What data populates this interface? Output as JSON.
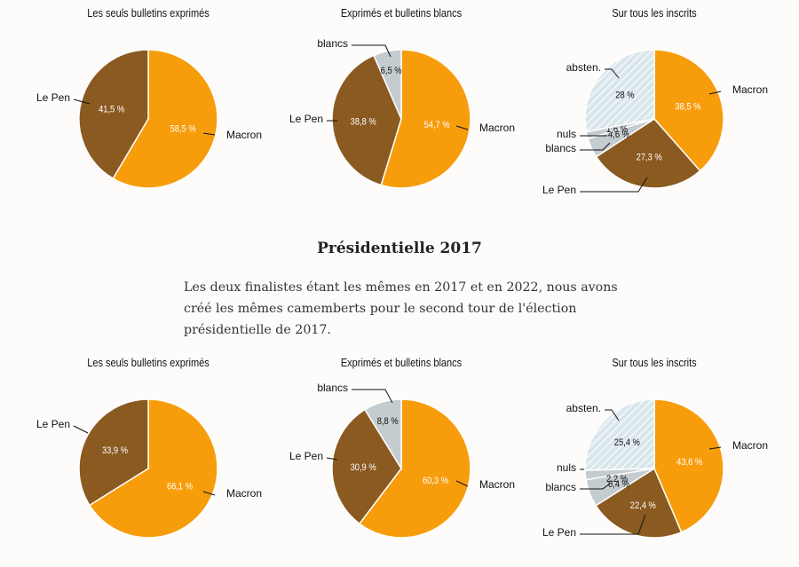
{
  "colors": {
    "macron": "#f79d0c",
    "lepen": "#8a5a21",
    "blancs": "#c4ccd0",
    "nuls": "#c4ccd0",
    "absten": "#d9e6ec",
    "hatch": "#ffffff",
    "stroke": "#ffffff"
  },
  "heading": "Présidentielle 2017",
  "intro": "Les deux finalistes étant les mêmes en 2017 et en 2022, nous avons créé les mêmes camemberts pour le second tour de l'élection présidentielle de 2017.",
  "chart_data": [
    {
      "type": "pie",
      "group": "top",
      "title": "Les seuls bulletins exprimés",
      "slices": [
        {
          "key": "macron",
          "name": "Macron",
          "value": 58.5,
          "label": "58,5 %"
        },
        {
          "key": "lepen",
          "name": "Le Pen",
          "value": 41.5,
          "label": "41,5 %"
        }
      ]
    },
    {
      "type": "pie",
      "group": "top",
      "title": "Exprimés et bulletins blancs",
      "slices": [
        {
          "key": "macron",
          "name": "Macron",
          "value": 54.7,
          "label": "54,7 %"
        },
        {
          "key": "lepen",
          "name": "Le Pen",
          "value": 38.8,
          "label": "38,8 %"
        },
        {
          "key": "blancs",
          "name": "blancs",
          "value": 6.5,
          "label": "6,5 %"
        }
      ]
    },
    {
      "type": "pie",
      "group": "top",
      "title": "Sur tous les inscrits",
      "slices": [
        {
          "key": "macron",
          "name": "Macron",
          "value": 38.5,
          "label": "38,5 %"
        },
        {
          "key": "lepen",
          "name": "Le Pen",
          "value": 27.3,
          "label": "27,3 %"
        },
        {
          "key": "blancs",
          "name": "blancs",
          "value": 4.6,
          "label": "4,6 %"
        },
        {
          "key": "nuls",
          "name": "nuls",
          "value": 1.6,
          "label": "1,6 %"
        },
        {
          "key": "absten",
          "name": "absten.",
          "value": 28,
          "label": "28 %"
        }
      ]
    },
    {
      "type": "pie",
      "group": "bottom",
      "title": "Les seuls bulletins exprimés",
      "slices": [
        {
          "key": "macron",
          "name": "Macron",
          "value": 66.1,
          "label": "66,1 %"
        },
        {
          "key": "lepen",
          "name": "Le Pen",
          "value": 33.9,
          "label": "33,9 %"
        }
      ]
    },
    {
      "type": "pie",
      "group": "bottom",
      "title": "Exprimés et bulletins blancs",
      "slices": [
        {
          "key": "macron",
          "name": "Macron",
          "value": 60.3,
          "label": "60,3 %"
        },
        {
          "key": "lepen",
          "name": "Le Pen",
          "value": 30.9,
          "label": "30,9 %"
        },
        {
          "key": "blancs",
          "name": "blancs",
          "value": 8.8,
          "label": "8,8 %"
        }
      ]
    },
    {
      "type": "pie",
      "group": "bottom",
      "title": "Sur tous les inscrits",
      "slices": [
        {
          "key": "macron",
          "name": "Macron",
          "value": 43.6,
          "label": "43,6 %"
        },
        {
          "key": "lepen",
          "name": "Le Pen",
          "value": 22.4,
          "label": "22,4 %"
        },
        {
          "key": "blancs",
          "name": "blancs",
          "value": 6.4,
          "label": "6,4 %"
        },
        {
          "key": "nuls",
          "name": "nuls",
          "value": 2.2,
          "label": "2,2 %"
        },
        {
          "key": "absten",
          "name": "absten.",
          "value": 25.4,
          "label": "25,4 %"
        }
      ]
    }
  ]
}
